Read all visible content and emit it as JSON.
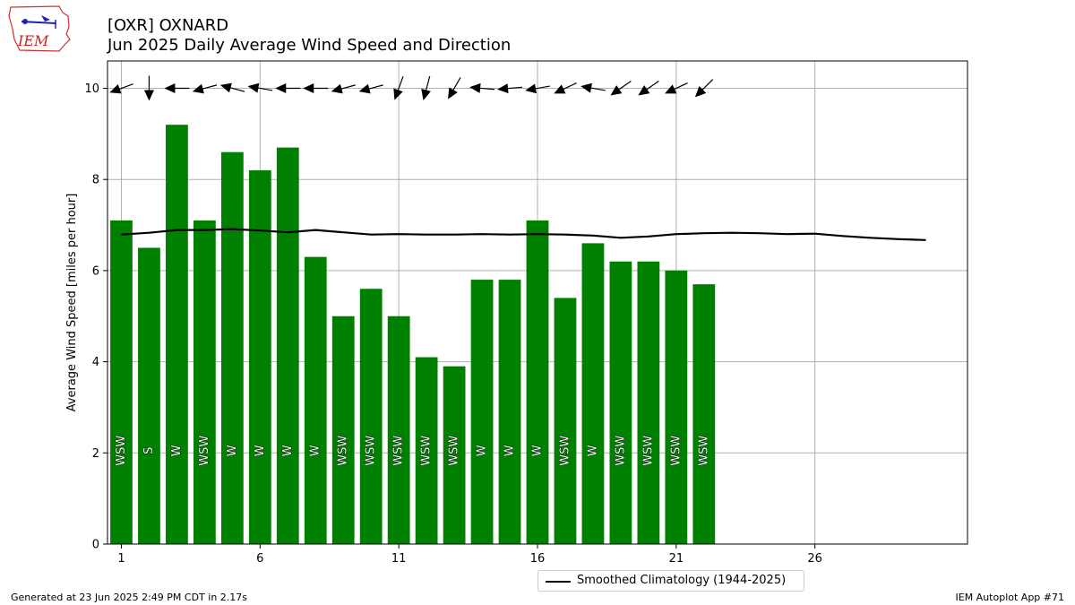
{
  "logo": {
    "text": "IEM"
  },
  "header": {
    "title_line1": "[OXR] OXNARD",
    "title_line2": "Jun 2025 Daily Average Wind Speed and Direction"
  },
  "footer": {
    "generated": "Generated at 23 Jun 2025 2:49 PM CDT in 2.17s",
    "app": "IEM Autoplot App #71"
  },
  "chart_data": {
    "type": "bar",
    "ylabel": "Average Wind Speed [miles per hour]",
    "xlabel": "",
    "xlim": [
      0.5,
      31.5
    ],
    "ylim": [
      0,
      10.6
    ],
    "xticks": [
      1,
      6,
      11,
      16,
      21,
      26
    ],
    "yticks": [
      0,
      2,
      4,
      6,
      8,
      10
    ],
    "grid": true,
    "legend_position": "bottom-center, below plot",
    "colors": {
      "bars": "#008000",
      "climatology": "#000000",
      "grid": "#b0b0b0"
    },
    "days": [
      1,
      2,
      3,
      4,
      5,
      6,
      7,
      8,
      9,
      10,
      11,
      12,
      13,
      14,
      15,
      16,
      17,
      18,
      19,
      20,
      21,
      22
    ],
    "values": [
      7.1,
      6.5,
      9.2,
      7.1,
      8.6,
      8.2,
      8.7,
      6.3,
      5.0,
      5.6,
      5.0,
      4.1,
      3.9,
      5.8,
      5.8,
      7.1,
      5.4,
      6.6,
      6.2,
      6.2,
      6.0,
      5.7
    ],
    "direction_labels": [
      "WSW",
      "S",
      "W",
      "WSW",
      "W",
      "W",
      "W",
      "W",
      "WSW",
      "WSW",
      "WSW",
      "WSW",
      "WSW",
      "W",
      "W",
      "W",
      "WSW",
      "W",
      "WSW",
      "WSW",
      "WSW",
      "WSW"
    ],
    "arrow_directions_deg": [
      250,
      180,
      270,
      255,
      285,
      280,
      270,
      270,
      255,
      255,
      200,
      195,
      210,
      275,
      265,
      260,
      245,
      280,
      235,
      235,
      245,
      225
    ],
    "climatology": {
      "name": "Smoothed Climatology (1944-2025)",
      "days": [
        1,
        2,
        3,
        4,
        5,
        6,
        7,
        8,
        9,
        10,
        11,
        12,
        13,
        14,
        15,
        16,
        17,
        18,
        19,
        20,
        21,
        22,
        23,
        24,
        25,
        26,
        27,
        28,
        29,
        30
      ],
      "values": [
        6.79,
        6.83,
        6.89,
        6.89,
        6.91,
        6.88,
        6.84,
        6.89,
        6.84,
        6.79,
        6.8,
        6.79,
        6.79,
        6.8,
        6.79,
        6.8,
        6.79,
        6.77,
        6.72,
        6.75,
        6.8,
        6.82,
        6.83,
        6.82,
        6.8,
        6.81,
        6.76,
        6.72,
        6.69,
        6.67
      ]
    }
  }
}
